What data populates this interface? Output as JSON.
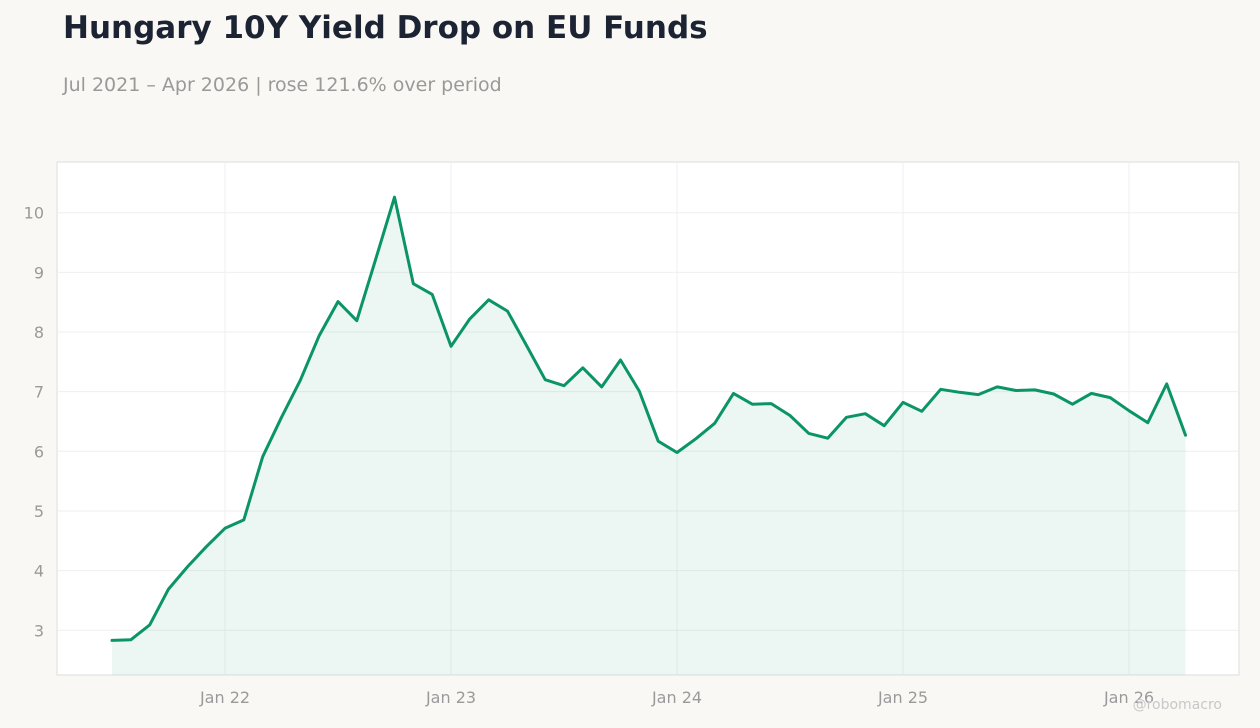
{
  "header": {
    "title": "Hungary 10Y Yield Drop on EU Funds",
    "subtitle": "Jul 2021 – Apr 2026 | rose 121.6% over period"
  },
  "watermark": "@robomacro",
  "colors": {
    "line": "#0b9467",
    "fill": "#0b9467",
    "background": "#f9f8f5",
    "plot_background": "#ffffff",
    "grid": "#efefef",
    "tick_text": "#9a9a9a",
    "title": "#1c2333"
  },
  "chart_data": {
    "type": "area",
    "title": "Hungary 10Y Yield Drop on EU Funds",
    "subtitle": "Jul 2021 – Apr 2026 | rose 121.6% over period",
    "xlabel": "",
    "ylabel": "",
    "ylim": [
      2.25,
      10.85
    ],
    "yticks": [
      3,
      4,
      5,
      6,
      7,
      8,
      9,
      10
    ],
    "xticks": [
      {
        "date": "2022-01",
        "label": "Jan 22"
      },
      {
        "date": "2023-01",
        "label": "Jan 23"
      },
      {
        "date": "2024-01",
        "label": "Jan 24"
      },
      {
        "date": "2025-01",
        "label": "Jan 25"
      },
      {
        "date": "2026-01",
        "label": "Jan 26"
      }
    ],
    "grid": true,
    "legend": "none",
    "series": [
      {
        "x": [
          "2021-07",
          "2021-08",
          "2021-09",
          "2021-10",
          "2021-11",
          "2021-12",
          "2022-01",
          "2022-02",
          "2022-03",
          "2022-04",
          "2022-05",
          "2022-06",
          "2022-07",
          "2022-08",
          "2022-09",
          "2022-10",
          "2022-11",
          "2022-12",
          "2023-01",
          "2023-02",
          "2023-03",
          "2023-04",
          "2023-05",
          "2023-06",
          "2023-07",
          "2023-08",
          "2023-09",
          "2023-10",
          "2023-11",
          "2023-12",
          "2024-01",
          "2024-02",
          "2024-03",
          "2024-04",
          "2024-05",
          "2024-06",
          "2024-07",
          "2024-08",
          "2024-09",
          "2024-10",
          "2024-11",
          "2024-12",
          "2025-01",
          "2025-02",
          "2025-03",
          "2025-04",
          "2025-05",
          "2025-06",
          "2025-07",
          "2025-08",
          "2025-09",
          "2025-10",
          "2025-11",
          "2025-12",
          "2026-01",
          "2026-02",
          "2026-03",
          "2026-04"
        ],
        "values": [
          2.83,
          2.84,
          3.09,
          3.69,
          4.06,
          4.4,
          4.71,
          4.85,
          5.91,
          6.57,
          7.19,
          7.94,
          8.51,
          8.19,
          9.22,
          10.26,
          8.81,
          8.63,
          7.76,
          8.22,
          8.54,
          8.35,
          7.78,
          7.2,
          7.1,
          7.4,
          7.08,
          7.53,
          7.01,
          6.17,
          5.98,
          6.21,
          6.47,
          6.97,
          6.79,
          6.8,
          6.6,
          6.3,
          6.22,
          6.57,
          6.63,
          6.43,
          6.82,
          6.67,
          7.04,
          6.99,
          6.95,
          7.08,
          7.02,
          7.03,
          6.96,
          6.79,
          6.97,
          6.9,
          6.68,
          6.48,
          7.13,
          6.27
        ]
      }
    ]
  }
}
